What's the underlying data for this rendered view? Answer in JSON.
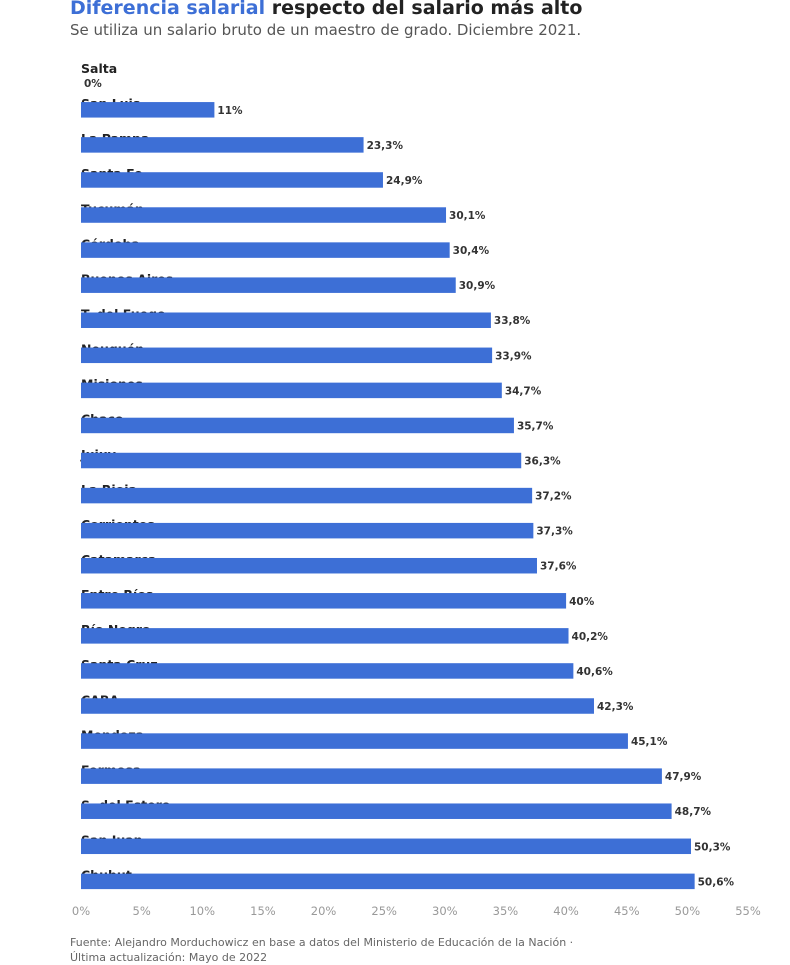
{
  "header": {
    "title_accent": "Diferencia salarial",
    "title_rest": " respecto del salario más alto",
    "subtitle": "Se utiliza un salario bruto de un maestro de grado. Diciembre 2021."
  },
  "colors": {
    "bar": "#3d6fd6",
    "accent": "#3d6fd6"
  },
  "chart_data": {
    "type": "bar",
    "orientation": "horizontal",
    "title": "Diferencia salarial respecto del salario más alto",
    "subtitle": "Se utiliza un salario bruto de un maestro de grado. Diciembre 2021.",
    "categories": [
      "Salta",
      "San Luis",
      "La Pampa",
      "Santa Fe",
      "Tucumán",
      "Córdoba",
      "Buenos Aires",
      "T. del Fuego",
      "Neuquén",
      "Misiones",
      "Chaco",
      "Jujuy",
      "La Rioja",
      "Corrientes",
      "Catamarca",
      "Entre Ríos",
      "Río Negro",
      "Santa Cruz",
      "CABA",
      "Mendoza",
      "Formosa",
      "S. del Estero",
      "San Juan",
      "Chubut"
    ],
    "values": [
      0,
      11,
      23.3,
      24.9,
      30.1,
      30.4,
      30.9,
      33.8,
      33.9,
      34.7,
      35.7,
      36.3,
      37.2,
      37.3,
      37.6,
      40,
      40.2,
      40.6,
      42.3,
      45.1,
      47.9,
      48.7,
      50.3,
      50.6
    ],
    "value_labels": [
      "0%",
      "11%",
      "23,3%",
      "24,9%",
      "30,1%",
      "30,4%",
      "30,9%",
      "33,8%",
      "33,9%",
      "34,7%",
      "35,7%",
      "36,3%",
      "37,2%",
      "37,3%",
      "37,6%",
      "40%",
      "40,2%",
      "40,6%",
      "42,3%",
      "45,1%",
      "47,9%",
      "48,7%",
      "50,3%",
      "50,6%"
    ],
    "x_ticks": [
      0,
      5,
      10,
      15,
      20,
      25,
      30,
      35,
      40,
      45,
      50,
      55
    ],
    "x_tick_labels": [
      "0%",
      "5%",
      "10%",
      "15%",
      "20%",
      "25%",
      "30%",
      "35%",
      "40%",
      "45%",
      "50%",
      "55%"
    ],
    "xlim": [
      0,
      55
    ],
    "grid": false,
    "legend": "none"
  },
  "footer": {
    "source_line1": "Fuente: Alejandro Morduchowicz en base a datos del Ministerio de Educación de la Nación ·",
    "source_line2": "Última actualización: Mayo de 2022"
  }
}
